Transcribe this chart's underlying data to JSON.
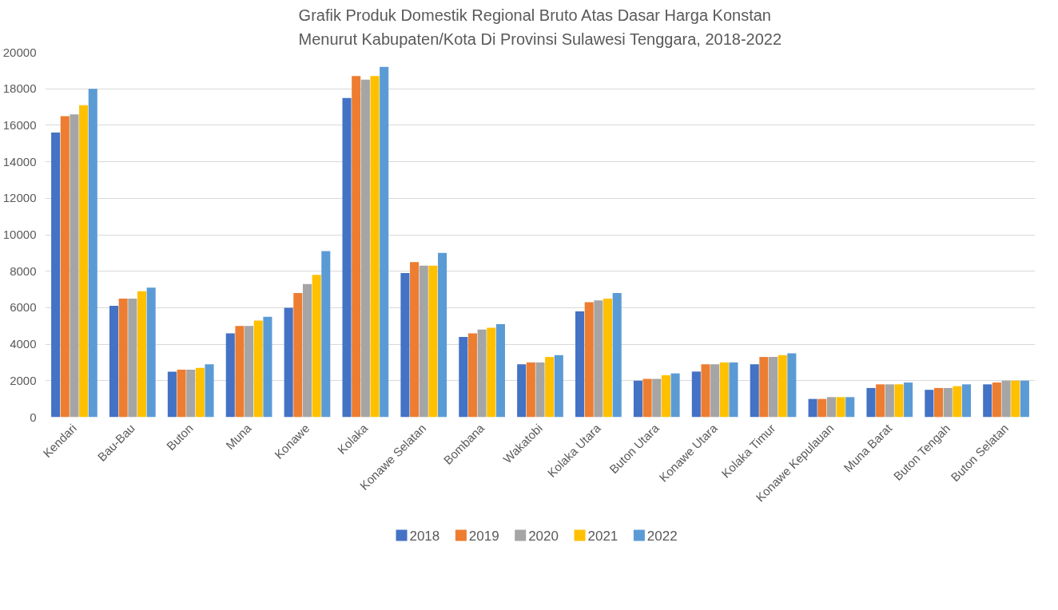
{
  "chart_data": {
    "type": "bar",
    "title": "Grafik Produk Domestik Regional Bruto Atas Dasar Harga Konstan\nMenurut Kabupaten/Kota Di Provinsi Sulawesi Tenggara, 2018-2022",
    "categories": [
      "Kendari",
      "Bau-Bau",
      "Buton",
      "Muna",
      "Konawe",
      "Kolaka",
      "Konawe Selatan",
      "Bombana",
      "Wakatobi",
      "Kolaka Utara",
      "Buton Utara",
      "Konawe Utara",
      "Kolaka Timur",
      "Konawe Kepulauan",
      "Muna Barat",
      "Buton Tengah",
      "Buton Selatan"
    ],
    "series": [
      {
        "name": "2018",
        "color": "#4472c4",
        "values": [
          15600,
          6100,
          2500,
          4600,
          6000,
          17500,
          7900,
          4400,
          2900,
          5800,
          2000,
          2500,
          2900,
          1000,
          1600,
          1500,
          1800
        ]
      },
      {
        "name": "2019",
        "color": "#ed7d31",
        "values": [
          16500,
          6500,
          2600,
          5000,
          6800,
          18700,
          8500,
          4600,
          3000,
          6300,
          2100,
          2900,
          3300,
          1000,
          1800,
          1600,
          1900
        ]
      },
      {
        "name": "2020",
        "color": "#a5a5a5",
        "values": [
          16600,
          6500,
          2600,
          5000,
          7300,
          18500,
          8300,
          4800,
          3000,
          6400,
          2100,
          2900,
          3300,
          1100,
          1800,
          1600,
          2000
        ]
      },
      {
        "name": "2021",
        "color": "#ffc000",
        "values": [
          17100,
          6900,
          2700,
          5300,
          7800,
          18700,
          8300,
          4900,
          3300,
          6500,
          2300,
          3000,
          3400,
          1100,
          1800,
          1700,
          2000
        ]
      },
      {
        "name": "2022",
        "color": "#5b9bd5",
        "values": [
          18000,
          7100,
          2900,
          5500,
          9100,
          19200,
          9000,
          5100,
          3400,
          6800,
          2400,
          3000,
          3500,
          1100,
          1900,
          1800,
          2000
        ]
      }
    ],
    "ylim": [
      0,
      20000
    ],
    "yticks": [
      0,
      2000,
      4000,
      6000,
      8000,
      10000,
      12000,
      14000,
      16000,
      18000,
      20000
    ],
    "grid": "y",
    "legend": "bottom"
  }
}
